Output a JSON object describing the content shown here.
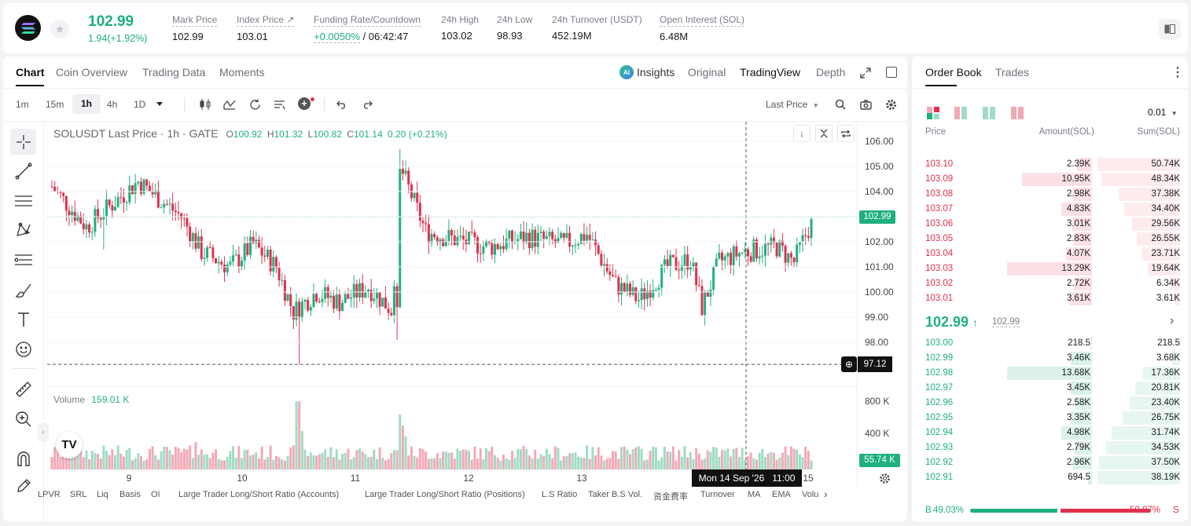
{
  "ticker": {
    "price": "102.99",
    "change": "1.94(+1.92%)",
    "stats": [
      {
        "label": "Mark Price",
        "value": "102.99"
      },
      {
        "label": "Index Price ↗",
        "value": "103.01"
      },
      {
        "label": "Funding Rate/Countdown",
        "value_rate": "+0.0050%",
        "value_rest": " / 06:42:47"
      },
      {
        "label": "24h High",
        "value": "103.02"
      },
      {
        "label": "24h Low",
        "value": "98.93"
      },
      {
        "label": "24h Turnover (USDT)",
        "value": "452.19M"
      },
      {
        "label": "Open Interest (SOL)",
        "value": "6.48M"
      }
    ]
  },
  "chart_tabs": [
    "Chart",
    "Coin Overview",
    "Trading Data",
    "Moments"
  ],
  "view_tabs": {
    "insights": "Insights",
    "original": "Original",
    "tradingview": "TradingView",
    "depth": "Depth"
  },
  "intervals": [
    "1m",
    "15m",
    "1h",
    "4h",
    "1D"
  ],
  "last_price_select": "Last Price",
  "legend": {
    "symbol": "SOLUSDT Last Price · 1h · GATE",
    "o_label": "O",
    "o": "100.92",
    "h_label": "H",
    "h": "101.32",
    "l_label": "L",
    "l": "100.82",
    "c_label": "C",
    "c": "101.14",
    "chg": "0.20 (+0.21%)"
  },
  "volume_legend": {
    "label": "Volume",
    "value": "159.01 K"
  },
  "price_axis": [
    "106.00",
    "105.00",
    "104.00",
    "103.00",
    "102.00",
    "101.00",
    "100.00",
    "99.00",
    "98.00"
  ],
  "last_price_tag": "102.99",
  "crosshair_price": "97.12",
  "volume_axis": [
    "800 K",
    "400 K"
  ],
  "volume_tag": "55.74 K",
  "time_axis": [
    "9",
    "10",
    "11",
    "12",
    "13",
    "15"
  ],
  "crosshair_time": "Mon 14 Sep '26   11:00",
  "indicators": [
    "LPVR",
    "SRL",
    "Liq",
    "Basis",
    "OI",
    "Large Trader Long/Short Ratio (Accounts)",
    "Large Trader Long/Short Ratio (Positions)",
    "L.S Ratio",
    "Taker B.S Vol.",
    "资金费率",
    "Turnover",
    "MA",
    "EMA",
    "Volu"
  ],
  "orderbook": {
    "tabs": [
      "Order Book",
      "Trades"
    ],
    "precision": "0.01",
    "headers": {
      "price": "Price",
      "amount": "Amount(SOL)",
      "sum": "Sum(SOL)"
    },
    "asks": [
      {
        "price": "103.10",
        "amount": "2.39K",
        "sum": "50.74K",
        "amt_frac": 0.18,
        "sum_frac": 1.0
      },
      {
        "price": "103.09",
        "amount": "10.95K",
        "sum": "48.34K",
        "amt_frac": 0.82,
        "sum_frac": 0.95
      },
      {
        "price": "103.08",
        "amount": "2.98K",
        "sum": "37.38K",
        "amt_frac": 0.22,
        "sum_frac": 0.74
      },
      {
        "price": "103.07",
        "amount": "4.83K",
        "sum": "34.40K",
        "amt_frac": 0.36,
        "sum_frac": 0.68
      },
      {
        "price": "103.06",
        "amount": "3.01K",
        "sum": "29.56K",
        "amt_frac": 0.23,
        "sum_frac": 0.58
      },
      {
        "price": "103.05",
        "amount": "2.83K",
        "sum": "26.55K",
        "amt_frac": 0.21,
        "sum_frac": 0.52
      },
      {
        "price": "103.04",
        "amount": "4.07K",
        "sum": "23.71K",
        "amt_frac": 0.31,
        "sum_frac": 0.47
      },
      {
        "price": "103.03",
        "amount": "13.29K",
        "sum": "19.64K",
        "amt_frac": 1.0,
        "sum_frac": 0.39
      },
      {
        "price": "103.02",
        "amount": "2.72K",
        "sum": "6.34K",
        "amt_frac": 0.2,
        "sum_frac": 0.12
      },
      {
        "price": "103.01",
        "amount": "3.61K",
        "sum": "3.61K",
        "amt_frac": 0.27,
        "sum_frac": 0.07
      }
    ],
    "mid_price": "102.99",
    "mid_mark": "102.99",
    "bids": [
      {
        "price": "103.00",
        "amount": "218.5",
        "sum": "218.5",
        "amt_frac": 0.02,
        "sum_frac": 0.01
      },
      {
        "price": "102.99",
        "amount": "3.46K",
        "sum": "3.68K",
        "amt_frac": 0.25,
        "sum_frac": 0.1
      },
      {
        "price": "102.98",
        "amount": "13.68K",
        "sum": "17.36K",
        "amt_frac": 1.0,
        "sum_frac": 0.45
      },
      {
        "price": "102.97",
        "amount": "3.45K",
        "sum": "20.81K",
        "amt_frac": 0.25,
        "sum_frac": 0.54
      },
      {
        "price": "102.96",
        "amount": "2.58K",
        "sum": "23.40K",
        "amt_frac": 0.19,
        "sum_frac": 0.61
      },
      {
        "price": "102.95",
        "amount": "3.35K",
        "sum": "26.75K",
        "amt_frac": 0.25,
        "sum_frac": 0.7
      },
      {
        "price": "102.94",
        "amount": "4.98K",
        "sum": "31.74K",
        "amt_frac": 0.36,
        "sum_frac": 0.83
      },
      {
        "price": "102.93",
        "amount": "2.79K",
        "sum": "34.53K",
        "amt_frac": 0.2,
        "sum_frac": 0.9
      },
      {
        "price": "102.92",
        "amount": "2.96K",
        "sum": "37.50K",
        "amt_frac": 0.22,
        "sum_frac": 0.98
      },
      {
        "price": "102.91",
        "amount": "694.5",
        "sum": "38.19K",
        "amt_frac": 0.05,
        "sum_frac": 1.0
      }
    ],
    "ratio": {
      "buy_label": "B",
      "buy_pct": "49.03%",
      "sell_pct": "50.97%",
      "sell_label": "S",
      "buy_frac": 0.4903
    }
  },
  "colors": {
    "up": "#1fb07f",
    "down": "#e0314d",
    "up_vol": "#9fdcc4",
    "down_vol": "#f3a9b5"
  },
  "icons": [
    "solana-logo",
    "star-icon",
    "notes-icon",
    "ai-insights-icon",
    "expand-icon",
    "window-icon",
    "candle-type-icon",
    "indicator-icon",
    "replay-icon",
    "template-icon",
    "add-indicator-icon",
    "undo-icon",
    "redo-icon",
    "search-icon",
    "camera-icon",
    "settings-icon",
    "crosshair-icon",
    "trend-line-icon",
    "horizontal-lines-icon",
    "pattern-icon",
    "fib-icon",
    "brush-icon",
    "text-icon",
    "emoji-icon",
    "ruler-icon",
    "zoom-icon",
    "magnet-icon",
    "pencil-icon",
    "more-icon"
  ]
}
